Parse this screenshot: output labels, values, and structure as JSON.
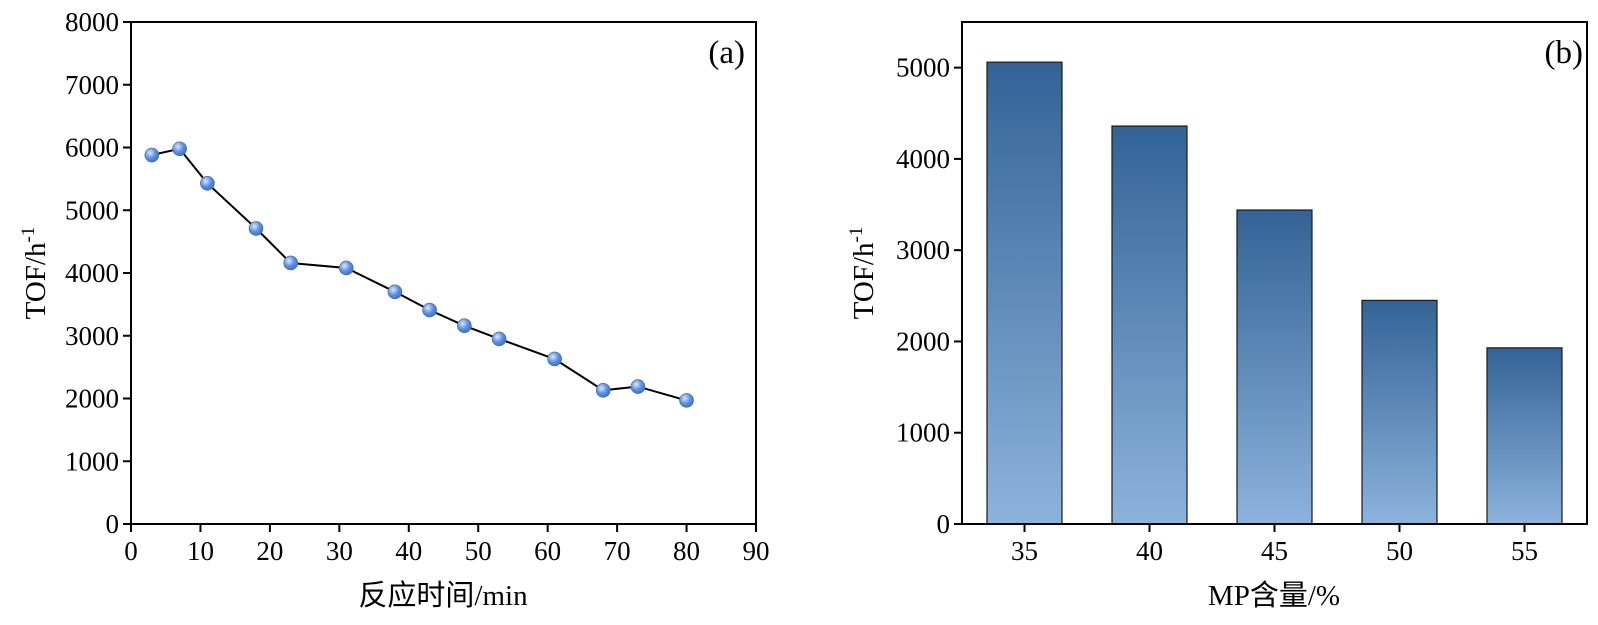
{
  "chart_data": [
    {
      "type": "line",
      "panel_label": "(a)",
      "xlabel": "反应时间/min",
      "ylabel": "TOF/h",
      "ylabel_sup": "-1",
      "xlim": [
        0,
        90
      ],
      "ylim": [
        0,
        8000
      ],
      "xticks": [
        0,
        10,
        20,
        30,
        40,
        50,
        60,
        70,
        80,
        90
      ],
      "yticks": [
        0,
        1000,
        2000,
        3000,
        4000,
        5000,
        6000,
        7000,
        8000
      ],
      "grid": false,
      "series": [
        {
          "x": [
            3,
            7,
            11,
            18,
            23,
            31,
            38,
            43,
            48,
            53,
            61,
            68,
            73,
            80
          ],
          "y": [
            5880,
            5980,
            5430,
            4710,
            4160,
            4080,
            3700,
            3410,
            3160,
            2950,
            2630,
            2130,
            2190,
            1970
          ]
        }
      ],
      "colors": {
        "line": "#000000",
        "marker": "#5b8fe0",
        "marker_highlight": "#dbe8fb"
      }
    },
    {
      "type": "bar",
      "panel_label": "(b)",
      "xlabel": "MP含量/%",
      "ylabel": "TOF/h",
      "ylabel_sup": "-1",
      "categories": [
        "35",
        "40",
        "45",
        "50",
        "55"
      ],
      "values": [
        5060,
        4360,
        3440,
        2450,
        1930
      ],
      "ylim": [
        0,
        5500
      ],
      "yticks": [
        0,
        1000,
        2000,
        3000,
        4000,
        5000
      ],
      "grid": false,
      "colors": {
        "bar_top": "#336396",
        "bar_bottom": "#8cb3dc",
        "bar_edge": "#1a1a1a"
      }
    }
  ]
}
